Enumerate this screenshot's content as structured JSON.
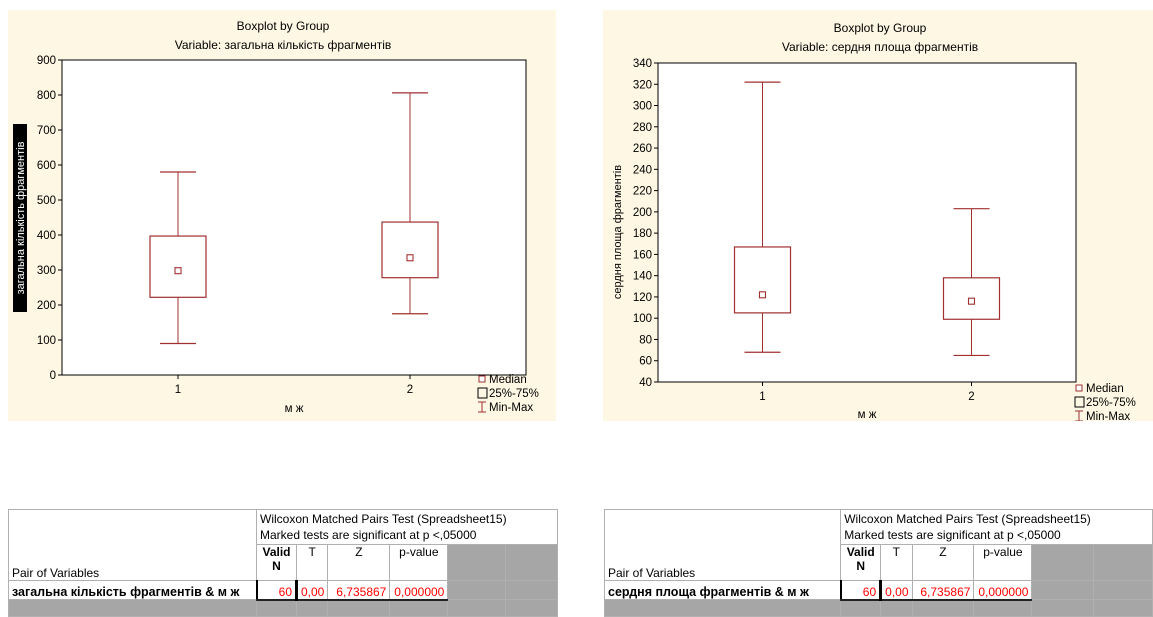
{
  "colors": {
    "panel_bg": "#fdf7e3",
    "plot_bg": "#ffffff",
    "box": "#a03030",
    "table_grey": "#a6a6a6",
    "significant": "#ff0000"
  },
  "chart_data": [
    {
      "type": "boxplot",
      "title": "Boxplot by Group",
      "subtitle": "Variable: загальна кількість фрагментів",
      "xlabel": "м ж",
      "ylabel": "загальна кількість фрагментів",
      "ylabel_style": "inverted",
      "categories": [
        "1",
        "2"
      ],
      "ylim": [
        0,
        900
      ],
      "yticks": [
        "0",
        "100",
        "200",
        "300",
        "400",
        "500",
        "600",
        "700",
        "800",
        "900"
      ],
      "boxes": [
        {
          "category": "1",
          "min": 90,
          "q1": 222,
          "median": 298,
          "q3": 397,
          "max": 580
        },
        {
          "category": "2",
          "min": 175,
          "q1": 278,
          "median": 335,
          "q3": 437,
          "max": 806
        }
      ],
      "legend": [
        "Median",
        "25%-75%",
        "Min-Max"
      ],
      "legend_position": "bottom-right"
    },
    {
      "type": "boxplot",
      "title": "Boxplot by Group",
      "subtitle": "Variable: сердня площа фрагментів",
      "xlabel": "м ж",
      "ylabel": "сердня площа фрагментів",
      "ylabel_style": "normal",
      "categories": [
        "1",
        "2"
      ],
      "ylim": [
        40,
        340
      ],
      "yticks": [
        "40",
        "60",
        "80",
        "100",
        "120",
        "140",
        "160",
        "180",
        "200",
        "220",
        "240",
        "260",
        "280",
        "300",
        "320",
        "340"
      ],
      "boxes": [
        {
          "category": "1",
          "min": 68,
          "q1": 105,
          "median": 122,
          "q3": 167,
          "max": 322
        },
        {
          "category": "2",
          "min": 65,
          "q1": 99,
          "median": 116,
          "q3": 138,
          "max": 203
        }
      ],
      "legend": [
        "Median",
        "25%-75%",
        "Min-Max"
      ],
      "legend_position": "bottom-right"
    }
  ],
  "tables": [
    {
      "header_line1": "Wilcoxon Matched Pairs Test (Spreadsheet15)",
      "header_line2": "Marked tests are significant at p <,05000",
      "pair_label": "Pair of Variables",
      "col_valid_1": "Valid",
      "col_valid_2": "N",
      "col_t": "T",
      "col_z": "Z",
      "col_p": "p-value",
      "row": {
        "label": "загальна кількість фрагментів & м ж",
        "valid_n": "60",
        "t": "0,00",
        "z": "6,735867",
        "p": "0,000000"
      }
    },
    {
      "header_line1": "Wilcoxon Matched Pairs Test (Spreadsheet15)",
      "header_line2": "Marked tests are significant at p <,05000",
      "pair_label": "Pair of Variables",
      "col_valid_1": "Valid",
      "col_valid_2": "N",
      "col_t": "T",
      "col_z": "Z",
      "col_p": "p-value",
      "row": {
        "label": "сердня площа фрагментів & м ж",
        "valid_n": "60",
        "t": "0,00",
        "z": "6,735867",
        "p": "0,000000"
      }
    }
  ]
}
